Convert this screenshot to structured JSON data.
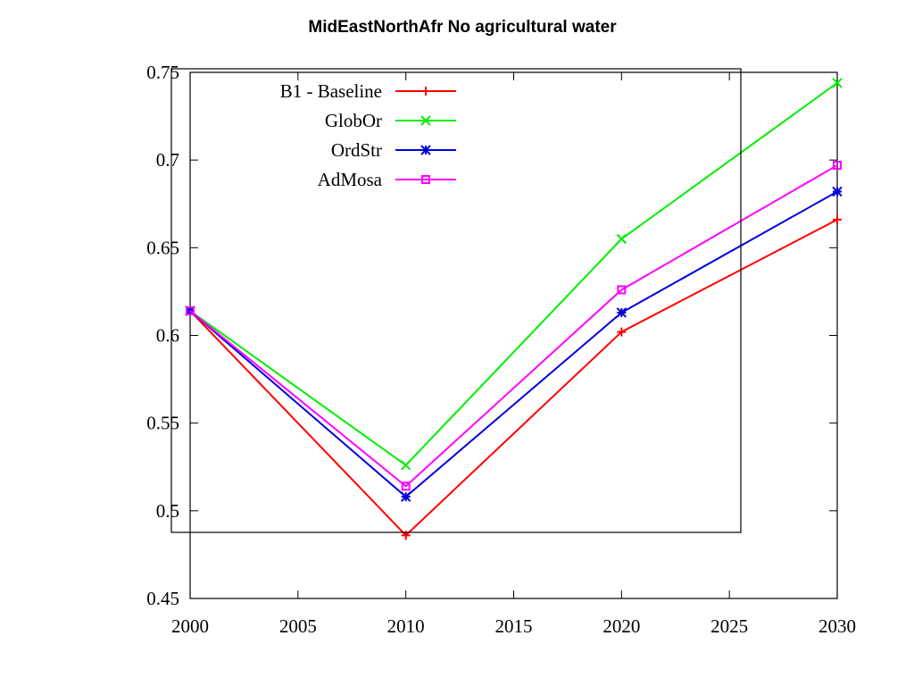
{
  "chart_data": {
    "type": "line",
    "title": "MidEastNorthAfr No agricultural water",
    "xlabel": "",
    "ylabel": "",
    "xlim": [
      2000,
      2030
    ],
    "ylim": [
      0.45,
      0.75
    ],
    "x_ticks": [
      2000,
      2005,
      2010,
      2015,
      2020,
      2025,
      2030
    ],
    "x_tick_labels": [
      "2000",
      "2005",
      "2010",
      "2015",
      "2020",
      "2025",
      "2030"
    ],
    "y_ticks": [
      0.45,
      0.5,
      0.55,
      0.6,
      0.65,
      0.7,
      0.75
    ],
    "y_tick_labels": [
      "0.45",
      "0.5",
      "0.55",
      "0.6",
      "0.65",
      "0.7",
      "0.75"
    ],
    "x": [
      2000,
      2010,
      2020,
      2030
    ],
    "series": [
      {
        "name": "B1 - Baseline",
        "values": [
          0.614,
          0.486,
          0.602,
          0.666
        ],
        "color": "#ff0000",
        "marker": "plus"
      },
      {
        "name": "GlobOr",
        "values": [
          0.614,
          0.526,
          0.655,
          0.744
        ],
        "color": "#00ee00",
        "marker": "cross"
      },
      {
        "name": "OrdStr",
        "values": [
          0.614,
          0.508,
          0.613,
          0.682
        ],
        "color": "#0000dd",
        "marker": "star"
      },
      {
        "name": "AdMosa",
        "values": [
          0.614,
          0.514,
          0.626,
          0.697
        ],
        "color": "#ff00ff",
        "marker": "square"
      }
    ],
    "legend": {
      "position": "top-left",
      "boxed": true
    },
    "grid": false
  }
}
